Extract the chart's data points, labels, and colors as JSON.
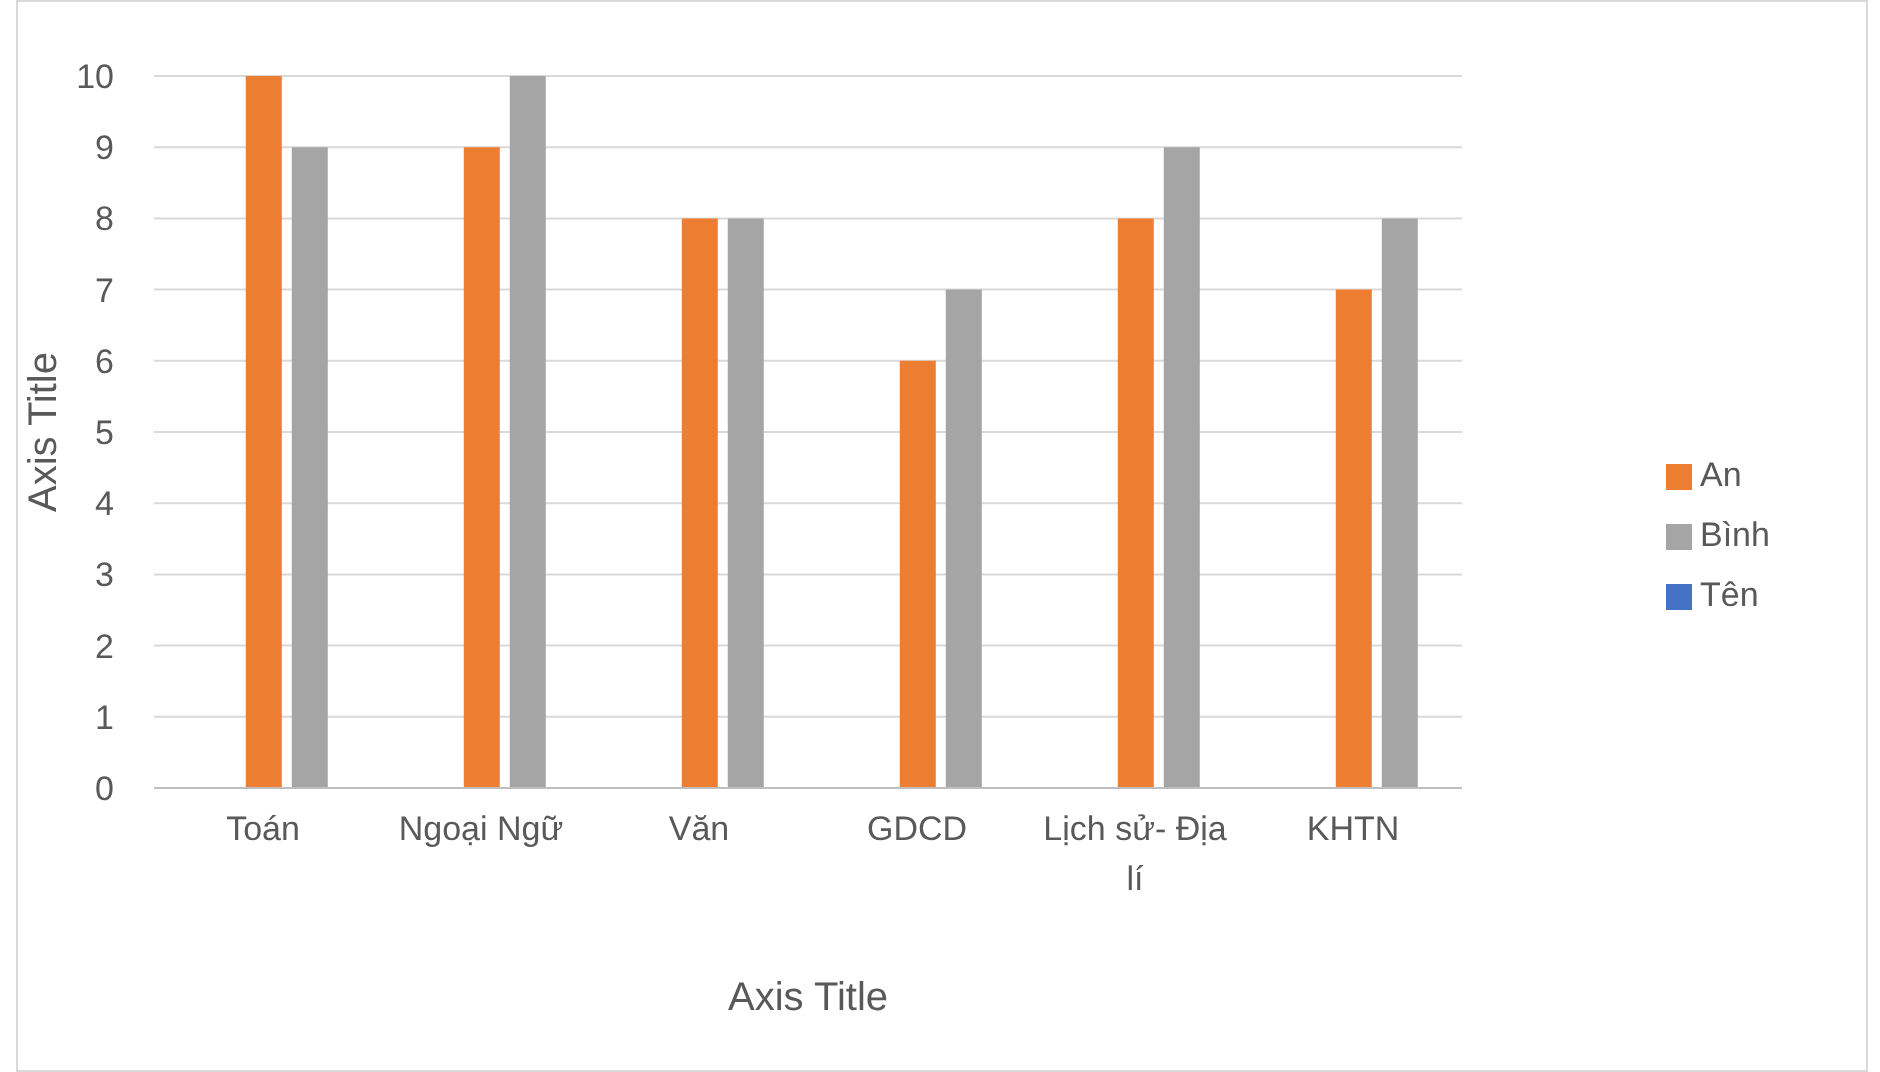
{
  "chart_data": {
    "type": "bar",
    "xlabel": "Axis Title",
    "ylabel": "Axis Title",
    "categories": [
      "Toán",
      "Ngoại Ngữ",
      "Văn",
      "GDCD",
      "Lịch sử- Địa lí",
      "KHTN"
    ],
    "series": [
      {
        "name": "Tên",
        "color": "#4472c4",
        "values": [
          null,
          null,
          null,
          null,
          null,
          null
        ]
      },
      {
        "name": "An",
        "color": "#ed7d31",
        "values": [
          10,
          9,
          8,
          6,
          8,
          7
        ]
      },
      {
        "name": "Bình",
        "color": "#a5a5a5",
        "values": [
          9,
          10,
          8,
          7,
          9,
          8
        ]
      }
    ],
    "ylim": [
      0,
      10
    ],
    "yticks": [
      0,
      1,
      2,
      3,
      4,
      5,
      6,
      7,
      8,
      9,
      10
    ],
    "grid": "y",
    "legend": "right"
  }
}
